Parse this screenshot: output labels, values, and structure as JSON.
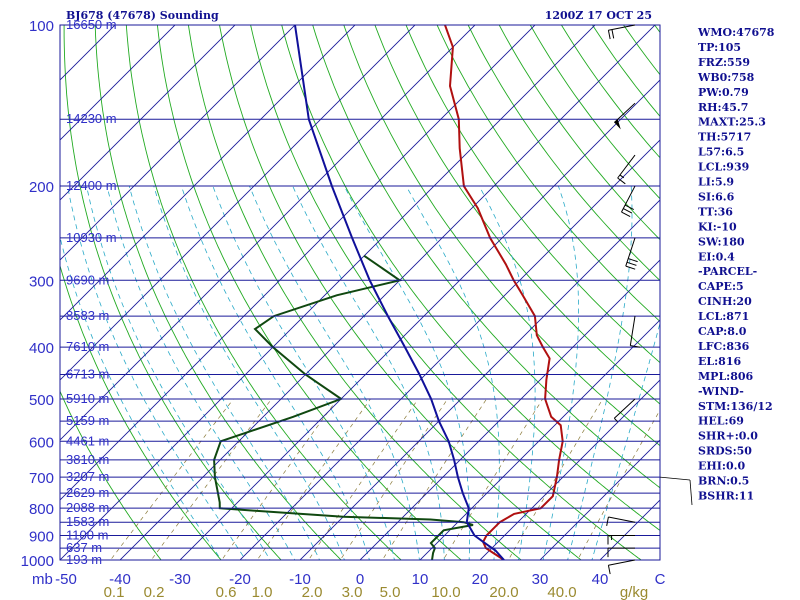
{
  "chart_data": {
    "type": "line",
    "chart_kind": "skew-t sounding",
    "title": "BJ678 (47678) Sounding",
    "valid_time": "1200Z 17 OCT 25",
    "pressure_axis": {
      "unit_label": "mb",
      "scale": "log",
      "range": [
        1000,
        100
      ],
      "ticks": [
        "100",
        "200",
        "300",
        "400",
        "500",
        "600",
        "700",
        "800",
        "900",
        "1000"
      ]
    },
    "temperature_axis": {
      "unit": "C",
      "range": [
        -50,
        50
      ],
      "ticks": [
        "-50",
        "-40",
        "-30",
        "-20",
        "-10",
        "0",
        "10",
        "20",
        "30",
        "40",
        "C"
      ]
    },
    "mixing_ratio_axis": {
      "unit": "g/kg",
      "ticks": [
        "0.1",
        "0.2",
        "0.6",
        "1.0",
        "2.0",
        "3.0",
        "5.0",
        "10.0",
        "20.0",
        "40.0"
      ]
    },
    "height_labels": [
      {
        "p": 100,
        "label": "16650 m"
      },
      {
        "p": 150,
        "label": "14230 m"
      },
      {
        "p": 200,
        "label": "12400 m"
      },
      {
        "p": 250,
        "label": "10930 m"
      },
      {
        "p": 300,
        "label": "9690 m"
      },
      {
        "p": 350,
        "label": "8583 m"
      },
      {
        "p": 400,
        "label": "7610 m"
      },
      {
        "p": 450,
        "label": "6713 m"
      },
      {
        "p": 500,
        "label": "5910 m"
      },
      {
        "p": 550,
        "label": "5159 m"
      },
      {
        "p": 600,
        "label": "4461 m"
      },
      {
        "p": 650,
        "label": "3810 m"
      },
      {
        "p": 700,
        "label": "3207 m"
      },
      {
        "p": 750,
        "label": "2629 m"
      },
      {
        "p": 800,
        "label": "2088 m"
      },
      {
        "p": 850,
        "label": "1583 m"
      },
      {
        "p": 900,
        "label": "1100 m"
      },
      {
        "p": 950,
        "label": "637 m"
      },
      {
        "p": 1000,
        "label": "193 m"
      }
    ],
    "series": [
      {
        "name": "Temperature",
        "color": "#b01010",
        "points": [
          [
            1000,
            24
          ],
          [
            970,
            21
          ],
          [
            950,
            19
          ],
          [
            925,
            17.5
          ],
          [
            900,
            17
          ],
          [
            870,
            17
          ],
          [
            850,
            17
          ],
          [
            820,
            18
          ],
          [
            800,
            21.5
          ],
          [
            760,
            21.5
          ],
          [
            700,
            19
          ],
          [
            650,
            16.5
          ],
          [
            600,
            14
          ],
          [
            560,
            11
          ],
          [
            540,
            8
          ],
          [
            500,
            4
          ],
          [
            460,
            1
          ],
          [
            420,
            -2
          ],
          [
            400,
            -5
          ],
          [
            380,
            -8
          ],
          [
            350,
            -11.5
          ],
          [
            320,
            -17
          ],
          [
            300,
            -21
          ],
          [
            280,
            -25
          ],
          [
            250,
            -32
          ],
          [
            220,
            -39
          ],
          [
            200,
            -45
          ],
          [
            170,
            -52
          ],
          [
            150,
            -57
          ],
          [
            130,
            -64
          ],
          [
            110,
            -70
          ],
          [
            100,
            -75
          ]
        ]
      },
      {
        "name": "Dewpoint",
        "color": "#104810",
        "points": [
          [
            1000,
            12
          ],
          [
            970,
            11
          ],
          [
            950,
            10.5
          ],
          [
            930,
            9
          ],
          [
            900,
            9
          ],
          [
            880,
            9
          ],
          [
            860,
            13
          ],
          [
            850,
            11
          ],
          [
            840,
            5
          ],
          [
            830,
            -10
          ],
          [
            810,
            -25
          ],
          [
            800,
            -32
          ],
          [
            780,
            -33
          ],
          [
            700,
            -38
          ],
          [
            650,
            -41
          ],
          [
            600,
            -43
          ],
          [
            540,
            -35
          ],
          [
            500,
            -30
          ],
          [
            450,
            -40
          ],
          [
            400,
            -50
          ],
          [
            370,
            -56
          ],
          [
            350,
            -55
          ],
          [
            320,
            -48
          ],
          [
            300,
            -40
          ],
          [
            270,
            -50
          ]
        ]
      },
      {
        "name": "Parcel",
        "color": "#10109a",
        "points": [
          [
            1000,
            24
          ],
          [
            960,
            21
          ],
          [
            940,
            19
          ],
          [
            920,
            17
          ],
          [
            900,
            15
          ],
          [
            871,
            13
          ],
          [
            850,
            11.5
          ],
          [
            800,
            9.5
          ],
          [
            750,
            6
          ],
          [
            700,
            2.5
          ],
          [
            650,
            -1
          ],
          [
            600,
            -5
          ],
          [
            550,
            -10
          ],
          [
            500,
            -15
          ],
          [
            450,
            -21
          ],
          [
            400,
            -28
          ],
          [
            350,
            -36
          ],
          [
            300,
            -45
          ],
          [
            250,
            -55
          ],
          [
            200,
            -67
          ],
          [
            150,
            -82
          ],
          [
            100,
            -100
          ]
        ]
      }
    ],
    "wind_barbs": [
      {
        "p": 1000,
        "dir": 260,
        "speed": 10
      },
      {
        "p": 950,
        "dir": 270,
        "speed": 10
      },
      {
        "p": 900,
        "dir": 270,
        "speed": 15
      },
      {
        "p": 850,
        "dir": 280,
        "speed": 10
      },
      {
        "p": 500,
        "dir": 230,
        "speed": 5
      },
      {
        "p": 350,
        "dir": 190,
        "speed": 10
      },
      {
        "p": 250,
        "dir": 200,
        "speed": 30
      },
      {
        "p": 200,
        "dir": 210,
        "speed": 30
      },
      {
        "p": 175,
        "dir": 220,
        "speed": 15
      },
      {
        "p": 140,
        "dir": 230,
        "speed": 50
      },
      {
        "p": 100,
        "dir": 260,
        "speed": 20
      }
    ],
    "indices": [
      "WMO:47678",
      "TP:105",
      "FRZ:559",
      "WB0:758",
      "PW:0.79",
      "RH:45.7",
      "MAXT:25.3",
      "TH:5717",
      "L57:6.5",
      "LCL:939",
      "LI:5.9",
      "SI:6.6",
      "TT:36",
      "KI:-10",
      "SW:180",
      "EI:0.4",
      "-PARCEL-",
      "CAPE:5",
      "CINH:20",
      "LCL:871",
      "CAP:8.0",
      "LFC:836",
      "EL:816",
      "MPL:806",
      "-WIND-",
      "STM:136/12",
      "HEL:69",
      "SHR+:0.0",
      "SRDS:50",
      "EHI:0.0",
      "BRN:0.5",
      "BSHR:11"
    ],
    "colors": {
      "isobar": "#1a1a9a",
      "isotherm": "#1a1a9a",
      "dry_adiabat": "#22aa22",
      "moist_adiabat": "#2aaac8",
      "mixing_ratio": "#8a7a3a",
      "mixing_ratio_label": "#9a8a30",
      "axis_text": "#3030c8",
      "index_text": "#101090"
    }
  }
}
